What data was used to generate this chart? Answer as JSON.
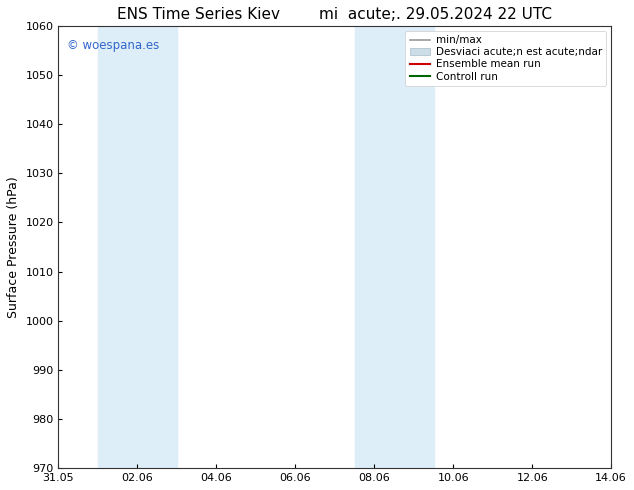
{
  "title": "ENS Time Series Kiev        mi  acute;. 29.05.2024 22 UTC",
  "ylabel": "Surface Pressure (hPa)",
  "ylim": [
    970,
    1060
  ],
  "yticks": [
    970,
    980,
    990,
    1000,
    1010,
    1020,
    1030,
    1040,
    1050,
    1060
  ],
  "xlim": [
    0,
    14
  ],
  "xtick_labels": [
    "31.05",
    "02.06",
    "04.06",
    "06.06",
    "08.06",
    "10.06",
    "12.06",
    "14.06"
  ],
  "xtick_positions": [
    0.5,
    2.5,
    4.5,
    6.5,
    8.5,
    10.5,
    12.5,
    14.0
  ],
  "shaded_bands": [
    {
      "x_start": 1.0,
      "x_end": 3.0,
      "color": "#ddeef8"
    },
    {
      "x_start": 7.5,
      "x_end": 9.5,
      "color": "#ddeef8"
    }
  ],
  "legend_label1": "min/max",
  "legend_label2": "Desviaci acute;n est acute;ndar",
  "legend_label3": "Ensemble mean run",
  "legend_label4": "Controll run",
  "legend_color1": "#999999",
  "legend_color2": "#ccdde8",
  "legend_color3": "#cc0000",
  "legend_color4": "#006600",
  "watermark": "© woespana.es",
  "watermark_color": "#3366cc",
  "bg_color": "#ffffff",
  "title_fontsize": 11,
  "axis_label_fontsize": 9,
  "tick_fontsize": 8,
  "legend_fontsize": 7.5
}
